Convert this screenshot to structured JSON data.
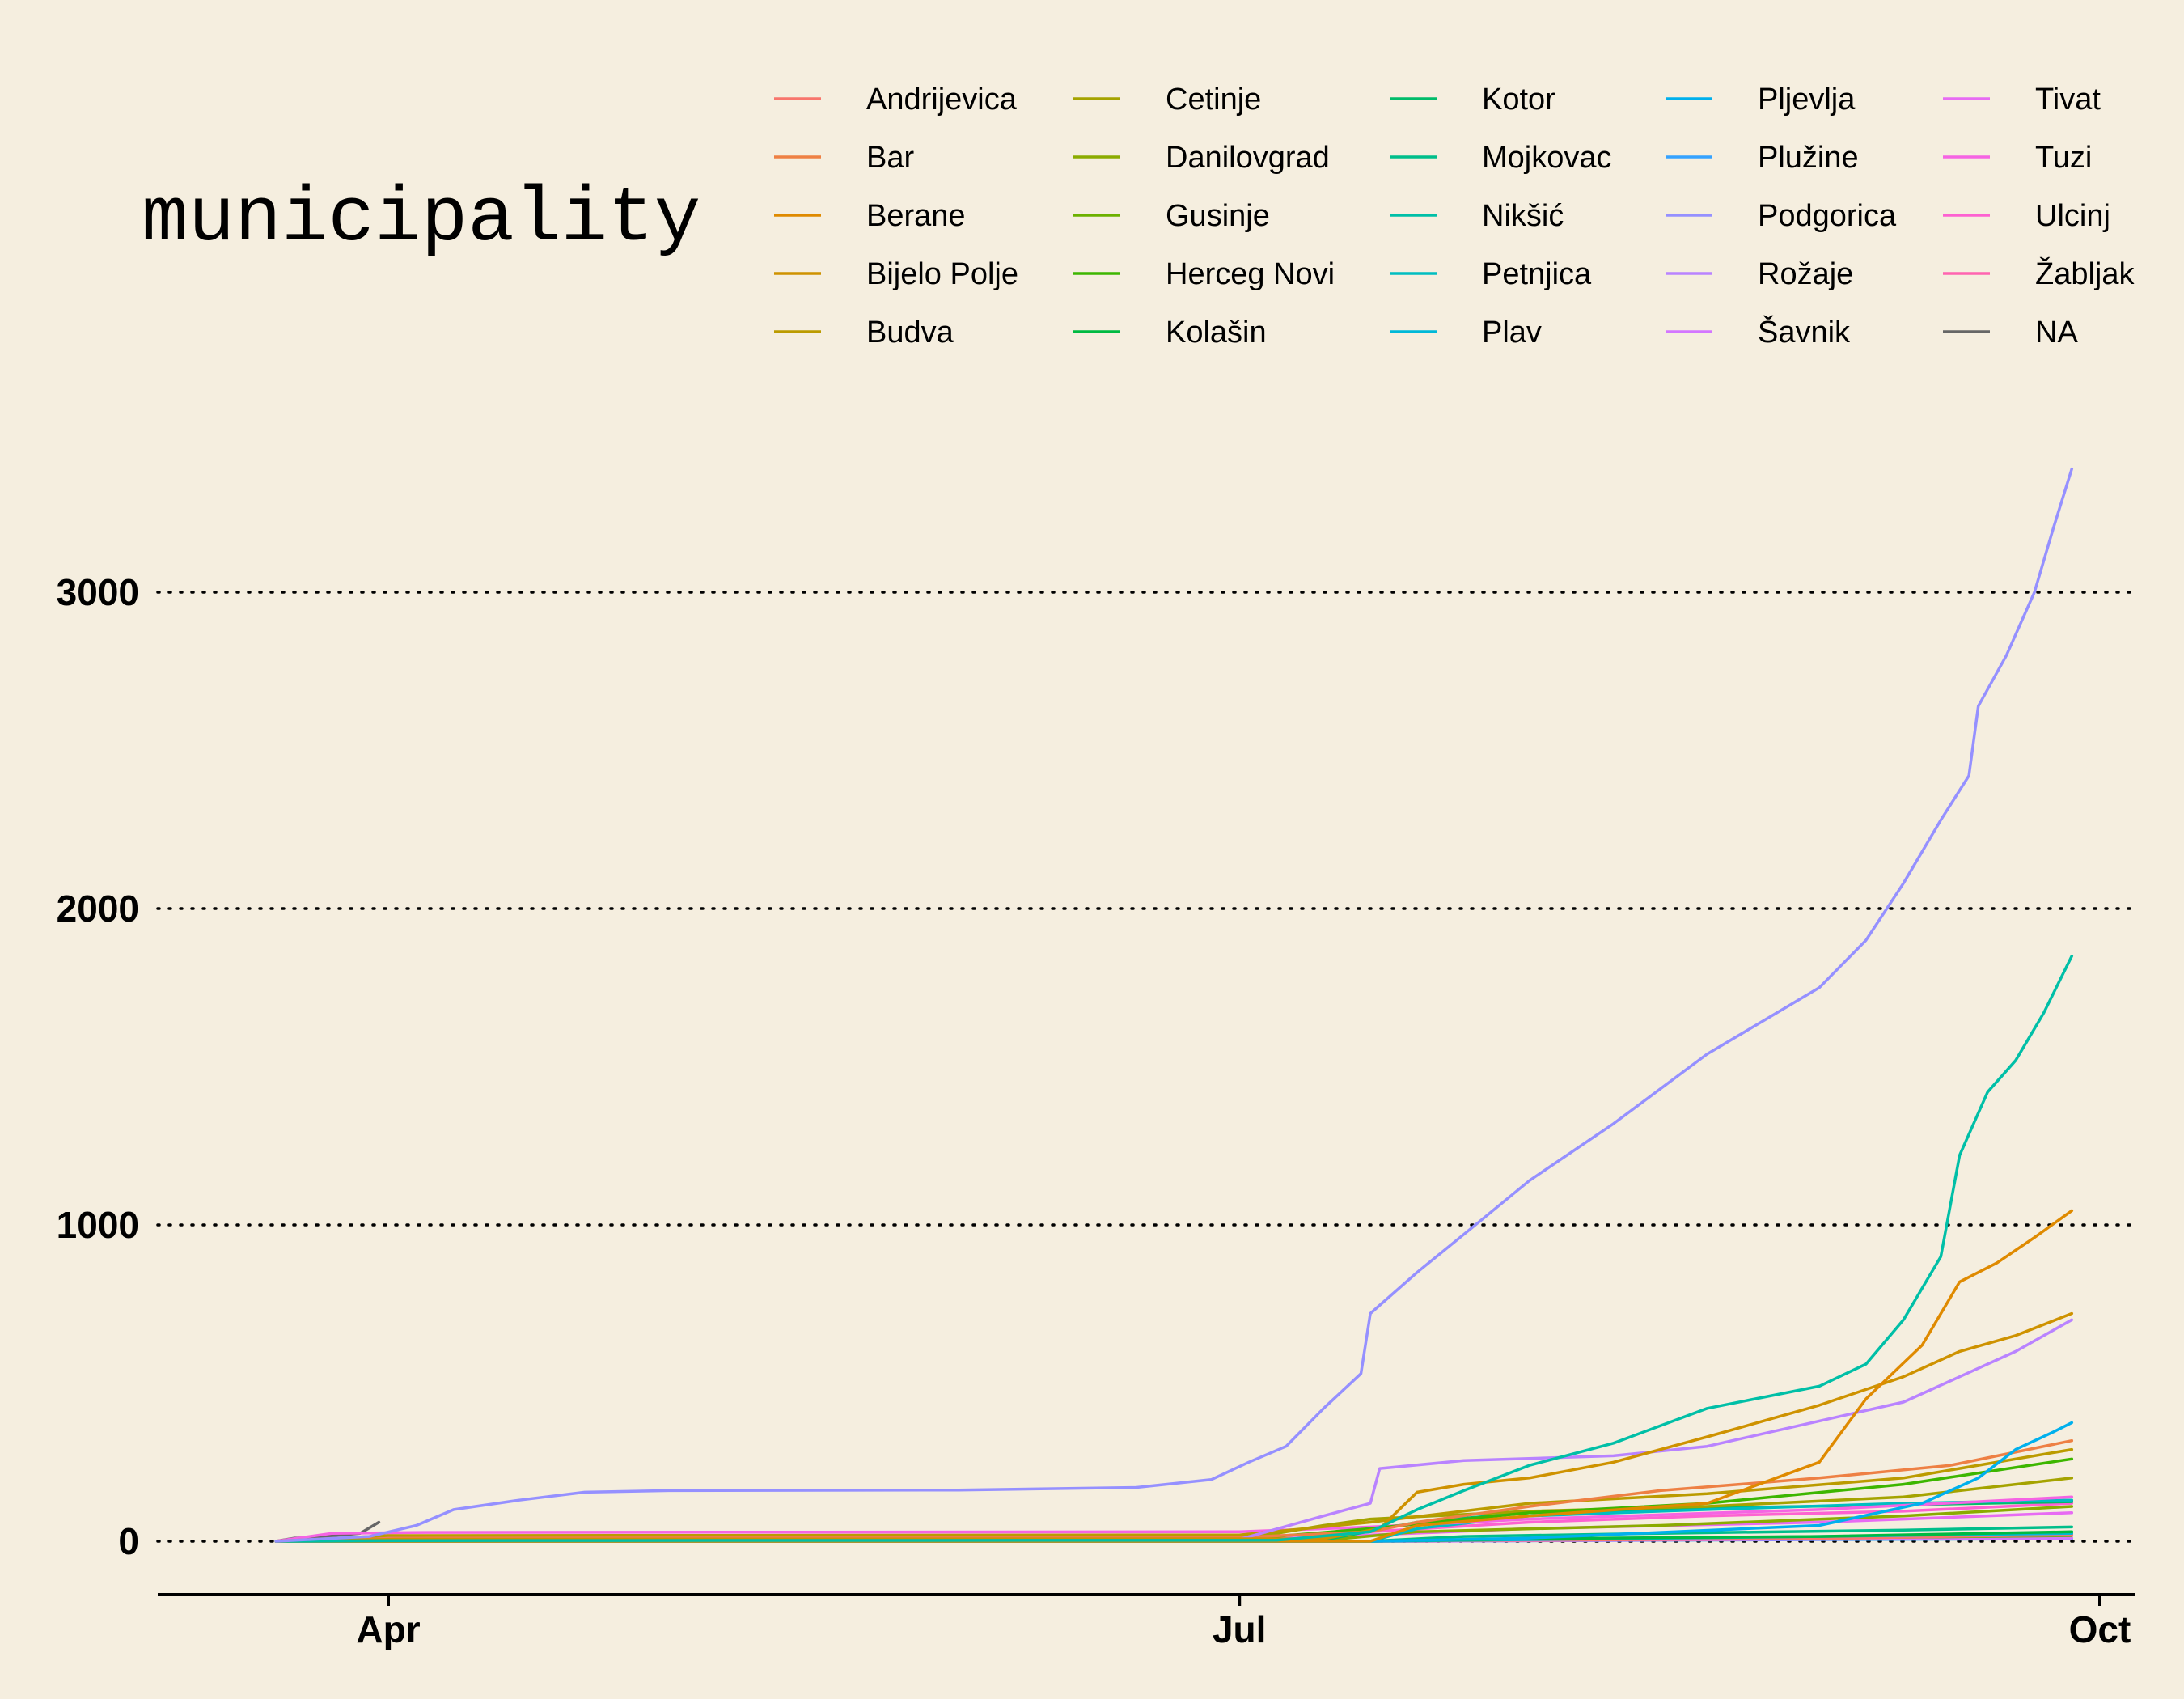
{
  "chart_data": {
    "type": "line",
    "legend": {
      "title": "municipality",
      "position": "top",
      "columns": 6
    },
    "x_axis": {
      "type": "date",
      "range": [
        "2020-03-01",
        "2020-10-01"
      ],
      "ticks": [
        {
          "value": "2020-04-01",
          "label": "Apr"
        },
        {
          "value": "2020-07-01",
          "label": "Jul"
        },
        {
          "value": "2020-10-01",
          "label": "Oct"
        }
      ]
    },
    "y_axis": {
      "range": [
        -170,
        3500
      ],
      "ticks": [
        0,
        1000,
        2000,
        3000
      ],
      "grid": "dotted"
    },
    "series": [
      {
        "name": "Andrijevica",
        "color": "#F8766D",
        "points": [
          [
            "2020-03-20",
            0
          ],
          [
            "2020-07-10",
            0
          ],
          [
            "2020-08-01",
            3
          ],
          [
            "2020-09-01",
            8
          ],
          [
            "2020-09-28",
            22
          ]
        ]
      },
      {
        "name": "Bar",
        "color": "#EE8044",
        "points": [
          [
            "2020-03-20",
            0
          ],
          [
            "2020-03-25",
            4
          ],
          [
            "2020-04-05",
            10
          ],
          [
            "2020-07-01",
            12
          ],
          [
            "2020-07-15",
            30
          ],
          [
            "2020-07-20",
            60
          ],
          [
            "2020-08-01",
            110
          ],
          [
            "2020-08-15",
            160
          ],
          [
            "2020-09-01",
            200
          ],
          [
            "2020-09-15",
            240
          ],
          [
            "2020-09-28",
            318
          ]
        ]
      },
      {
        "name": "Berane",
        "color": "#DF8A00",
        "points": [
          [
            "2020-03-20",
            0
          ],
          [
            "2020-07-15",
            0
          ],
          [
            "2020-07-20",
            50
          ],
          [
            "2020-08-01",
            80
          ],
          [
            "2020-08-20",
            120
          ],
          [
            "2020-09-01",
            250
          ],
          [
            "2020-09-06",
            450
          ],
          [
            "2020-09-12",
            620
          ],
          [
            "2020-09-16",
            820
          ],
          [
            "2020-09-20",
            880
          ],
          [
            "2020-09-24",
            960
          ],
          [
            "2020-09-28",
            1045
          ]
        ]
      },
      {
        "name": "Bijelo Polje",
        "color": "#CE9200",
        "points": [
          [
            "2020-03-20",
            0
          ],
          [
            "2020-04-01",
            6
          ],
          [
            "2020-07-10",
            8
          ],
          [
            "2020-07-16",
            40
          ],
          [
            "2020-07-20",
            155
          ],
          [
            "2020-07-25",
            180
          ],
          [
            "2020-08-01",
            200
          ],
          [
            "2020-08-10",
            250
          ],
          [
            "2020-08-20",
            330
          ],
          [
            "2020-09-01",
            430
          ],
          [
            "2020-09-10",
            520
          ],
          [
            "2020-09-16",
            600
          ],
          [
            "2020-09-22",
            650
          ],
          [
            "2020-09-28",
            720
          ]
        ]
      },
      {
        "name": "Budva",
        "color": "#BB9B00",
        "points": [
          [
            "2020-03-20",
            0
          ],
          [
            "2020-04-01",
            18
          ],
          [
            "2020-07-01",
            20
          ],
          [
            "2020-07-15",
            60
          ],
          [
            "2020-08-01",
            120
          ],
          [
            "2020-08-20",
            150
          ],
          [
            "2020-09-10",
            200
          ],
          [
            "2020-09-28",
            290
          ]
        ]
      },
      {
        "name": "Cetinje",
        "color": "#A5A300",
        "points": [
          [
            "2020-03-20",
            0
          ],
          [
            "2020-04-01",
            3
          ],
          [
            "2020-07-01",
            5
          ],
          [
            "2020-07-10",
            50
          ],
          [
            "2020-07-15",
            70
          ],
          [
            "2020-08-01",
            95
          ],
          [
            "2020-08-20",
            110
          ],
          [
            "2020-09-10",
            140
          ],
          [
            "2020-09-28",
            200
          ]
        ]
      },
      {
        "name": "Danilovgrad",
        "color": "#8BAB00",
        "points": [
          [
            "2020-03-20",
            0
          ],
          [
            "2020-04-01",
            2
          ],
          [
            "2020-07-10",
            3
          ],
          [
            "2020-07-20",
            30
          ],
          [
            "2020-08-15",
            50
          ],
          [
            "2020-09-10",
            80
          ],
          [
            "2020-09-28",
            110
          ]
        ]
      },
      {
        "name": "Gusinje",
        "color": "#6CB100",
        "points": [
          [
            "2020-03-20",
            0
          ],
          [
            "2020-07-15",
            0
          ],
          [
            "2020-08-01",
            4
          ],
          [
            "2020-09-01",
            10
          ],
          [
            "2020-09-28",
            18
          ]
        ]
      },
      {
        "name": "Herceg Novi",
        "color": "#3DB600",
        "points": [
          [
            "2020-03-20",
            0
          ],
          [
            "2020-04-01",
            5
          ],
          [
            "2020-07-01",
            6
          ],
          [
            "2020-07-15",
            40
          ],
          [
            "2020-08-01",
            90
          ],
          [
            "2020-08-20",
            120
          ],
          [
            "2020-09-10",
            180
          ],
          [
            "2020-09-28",
            260
          ]
        ]
      },
      {
        "name": "Kolašin",
        "color": "#00BA42",
        "points": [
          [
            "2020-03-20",
            0
          ],
          [
            "2020-07-15",
            0
          ],
          [
            "2020-08-01",
            8
          ],
          [
            "2020-09-01",
            15
          ],
          [
            "2020-09-28",
            30
          ]
        ]
      },
      {
        "name": "Kotor",
        "color": "#00BC6A",
        "points": [
          [
            "2020-03-20",
            0
          ],
          [
            "2020-04-01",
            3
          ],
          [
            "2020-07-10",
            4
          ],
          [
            "2020-07-20",
            60
          ],
          [
            "2020-08-01",
            90
          ],
          [
            "2020-08-20",
            105
          ],
          [
            "2020-09-10",
            115
          ],
          [
            "2020-09-28",
            125
          ]
        ]
      },
      {
        "name": "Mojkovac",
        "color": "#00BE8A",
        "points": [
          [
            "2020-03-20",
            0
          ],
          [
            "2020-07-15",
            0
          ],
          [
            "2020-07-25",
            15
          ],
          [
            "2020-08-15",
            25
          ],
          [
            "2020-09-10",
            35
          ],
          [
            "2020-09-28",
            45
          ]
        ]
      },
      {
        "name": "Nikšić",
        "color": "#00BFA7",
        "points": [
          [
            "2020-03-20",
            0
          ],
          [
            "2020-04-01",
            2
          ],
          [
            "2020-07-05",
            3
          ],
          [
            "2020-07-15",
            30
          ],
          [
            "2020-07-20",
            100
          ],
          [
            "2020-07-25",
            160
          ],
          [
            "2020-08-01",
            240
          ],
          [
            "2020-08-10",
            310
          ],
          [
            "2020-08-20",
            420
          ],
          [
            "2020-09-01",
            490
          ],
          [
            "2020-09-06",
            560
          ],
          [
            "2020-09-10",
            700
          ],
          [
            "2020-09-14",
            900
          ],
          [
            "2020-09-16",
            1220
          ],
          [
            "2020-09-19",
            1420
          ],
          [
            "2020-09-22",
            1520
          ],
          [
            "2020-09-25",
            1670
          ],
          [
            "2020-09-28",
            1850
          ]
        ]
      },
      {
        "name": "Petnjica",
        "color": "#00BDC1",
        "points": [
          [
            "2020-03-20",
            0
          ],
          [
            "2020-07-15",
            0
          ],
          [
            "2020-07-20",
            40
          ],
          [
            "2020-08-01",
            80
          ],
          [
            "2020-08-20",
            100
          ],
          [
            "2020-09-10",
            120
          ],
          [
            "2020-09-28",
            130
          ]
        ]
      },
      {
        "name": "Plav",
        "color": "#00B8D8",
        "points": [
          [
            "2020-03-20",
            0
          ],
          [
            "2020-07-15",
            0
          ],
          [
            "2020-08-01",
            5
          ],
          [
            "2020-09-01",
            15
          ],
          [
            "2020-09-28",
            25
          ]
        ]
      },
      {
        "name": "Pljevlja",
        "color": "#00B0ED",
        "points": [
          [
            "2020-03-20",
            0
          ],
          [
            "2020-07-15",
            0
          ],
          [
            "2020-08-01",
            10
          ],
          [
            "2020-09-01",
            50
          ],
          [
            "2020-09-12",
            120
          ],
          [
            "2020-09-18",
            200
          ],
          [
            "2020-09-22",
            290
          ],
          [
            "2020-09-26",
            345
          ],
          [
            "2020-09-28",
            375
          ]
        ]
      },
      {
        "name": "Plužine",
        "color": "#35A2FF",
        "points": [
          [
            "2020-03-20",
            0
          ],
          [
            "2020-07-20",
            0
          ],
          [
            "2020-08-15",
            3
          ],
          [
            "2020-09-28",
            8
          ]
        ]
      },
      {
        "name": "Podgorica",
        "color": "#9590FF",
        "points": [
          [
            "2020-03-20",
            0
          ],
          [
            "2020-03-30",
            15
          ],
          [
            "2020-04-04",
            50
          ],
          [
            "2020-04-08",
            100
          ],
          [
            "2020-04-15",
            130
          ],
          [
            "2020-04-22",
            155
          ],
          [
            "2020-05-01",
            160
          ],
          [
            "2020-06-01",
            162
          ],
          [
            "2020-06-20",
            170
          ],
          [
            "2020-06-28",
            195
          ],
          [
            "2020-07-02",
            250
          ],
          [
            "2020-07-06",
            300
          ],
          [
            "2020-07-10",
            420
          ],
          [
            "2020-07-14",
            530
          ],
          [
            "2020-07-15",
            720
          ],
          [
            "2020-07-20",
            850
          ],
          [
            "2020-07-25",
            970
          ],
          [
            "2020-08-01",
            1140
          ],
          [
            "2020-08-10",
            1320
          ],
          [
            "2020-08-20",
            1540
          ],
          [
            "2020-09-01",
            1750
          ],
          [
            "2020-09-06",
            1900
          ],
          [
            "2020-09-10",
            2080
          ],
          [
            "2020-09-14",
            2280
          ],
          [
            "2020-09-17",
            2420
          ],
          [
            "2020-09-18",
            2640
          ],
          [
            "2020-09-21",
            2800
          ],
          [
            "2020-09-24",
            3000
          ],
          [
            "2020-09-26",
            3200
          ],
          [
            "2020-09-28",
            3390
          ]
        ]
      },
      {
        "name": "Rožaje",
        "color": "#B983FF",
        "points": [
          [
            "2020-03-20",
            0
          ],
          [
            "2020-04-01",
            4
          ],
          [
            "2020-07-01",
            6
          ],
          [
            "2020-07-10",
            80
          ],
          [
            "2020-07-15",
            120
          ],
          [
            "2020-07-16",
            230
          ],
          [
            "2020-07-25",
            255
          ],
          [
            "2020-08-10",
            270
          ],
          [
            "2020-08-20",
            300
          ],
          [
            "2020-09-01",
            380
          ],
          [
            "2020-09-10",
            440
          ],
          [
            "2020-09-16",
            520
          ],
          [
            "2020-09-22",
            600
          ],
          [
            "2020-09-28",
            700
          ]
        ]
      },
      {
        "name": "Šavnik",
        "color": "#D376FF",
        "points": [
          [
            "2020-03-20",
            0
          ],
          [
            "2020-07-20",
            0
          ],
          [
            "2020-08-10",
            3
          ],
          [
            "2020-09-28",
            10
          ]
        ]
      },
      {
        "name": "Tivat",
        "color": "#E76BF3",
        "points": [
          [
            "2020-03-20",
            0
          ],
          [
            "2020-04-01",
            2
          ],
          [
            "2020-07-01",
            3
          ],
          [
            "2020-07-15",
            20
          ],
          [
            "2020-08-01",
            40
          ],
          [
            "2020-09-01",
            60
          ],
          [
            "2020-09-28",
            90
          ]
        ]
      },
      {
        "name": "Tuzi",
        "color": "#F564E3",
        "points": [
          [
            "2020-03-20",
            0
          ],
          [
            "2020-03-26",
            25
          ],
          [
            "2020-04-05",
            28
          ],
          [
            "2020-07-01",
            30
          ],
          [
            "2020-07-15",
            45
          ],
          [
            "2020-08-01",
            70
          ],
          [
            "2020-09-01",
            100
          ],
          [
            "2020-09-28",
            140
          ]
        ]
      },
      {
        "name": "Ulcinj",
        "color": "#FD61D1",
        "points": [
          [
            "2020-03-20",
            0
          ],
          [
            "2020-04-01",
            10
          ],
          [
            "2020-07-01",
            12
          ],
          [
            "2020-07-15",
            30
          ],
          [
            "2020-08-01",
            60
          ],
          [
            "2020-08-20",
            80
          ],
          [
            "2020-09-10",
            95
          ],
          [
            "2020-09-28",
            120
          ]
        ]
      },
      {
        "name": "Žabljak",
        "color": "#FF64B0",
        "points": [
          [
            "2020-03-20",
            0
          ],
          [
            "2020-07-15",
            0
          ],
          [
            "2020-08-01",
            5
          ],
          [
            "2020-09-01",
            12
          ],
          [
            "2020-09-28",
            20
          ]
        ]
      },
      {
        "name": "NA",
        "color": "#666666",
        "points": [
          [
            "2020-03-20",
            0
          ],
          [
            "2020-03-22",
            10
          ],
          [
            "2020-03-24",
            12
          ],
          [
            "2020-03-27",
            20
          ],
          [
            "2020-03-29",
            25
          ],
          [
            "2020-03-31",
            60
          ]
        ]
      }
    ]
  }
}
